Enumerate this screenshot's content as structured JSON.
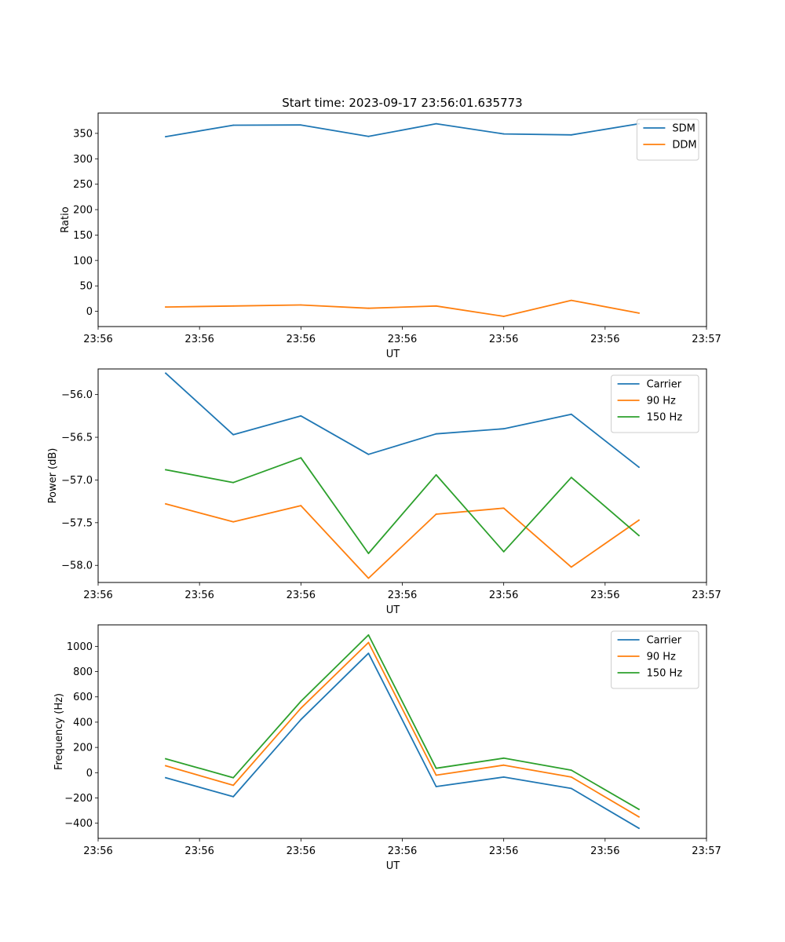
{
  "figure": {
    "title": "Start time: 2023-09-17 23:56:01.635773"
  },
  "chart_data": [
    {
      "type": "line",
      "id": "ratio",
      "title": "Start time: 2023-09-17 23:56:01.635773",
      "xlabel": "UT",
      "ylabel": "Ratio",
      "x_index": [
        1,
        2,
        3,
        4,
        5,
        6,
        7,
        8
      ],
      "xlim": [
        0,
        9
      ],
      "x_tick_positions": [
        0,
        1.5,
        3,
        4.5,
        6,
        7.5,
        9
      ],
      "x_tick_labels": [
        "23:56",
        "23:56",
        "23:56",
        "23:56",
        "23:56",
        "23:56",
        "23:57"
      ],
      "ylim": [
        -30,
        390
      ],
      "y_ticks": [
        0,
        50,
        100,
        150,
        200,
        250,
        300,
        350
      ],
      "y_tick_labels": [
        "0",
        "50",
        "100",
        "150",
        "200",
        "250",
        "300",
        "350"
      ],
      "legend": "upper right",
      "series": [
        {
          "name": "SDM",
          "color": "#1f77b4",
          "values": [
            343.5,
            366,
            366.5,
            344,
            369,
            349,
            347,
            369
          ]
        },
        {
          "name": "DDM",
          "color": "#ff7f0e",
          "values": [
            8.5,
            10.5,
            12.5,
            6,
            10.5,
            -10,
            21.5,
            -3.5
          ]
        }
      ]
    },
    {
      "type": "line",
      "id": "power",
      "title": "",
      "xlabel": "UT",
      "ylabel": "Power (dB)",
      "x_index": [
        1,
        2,
        3,
        4,
        5,
        6,
        7,
        8
      ],
      "xlim": [
        0,
        9
      ],
      "x_tick_positions": [
        0,
        1.5,
        3,
        4.5,
        6,
        7.5,
        9
      ],
      "x_tick_labels": [
        "23:56",
        "23:56",
        "23:56",
        "23:56",
        "23:56",
        "23:56",
        "23:57"
      ],
      "ylim": [
        -58.2,
        -55.7
      ],
      "y_ticks": [
        -58.0,
        -57.5,
        -57.0,
        -56.5,
        -56.0
      ],
      "y_tick_labels": [
        "−58.0",
        "−57.5",
        "−57.0",
        "−56.5",
        "−56.0"
      ],
      "legend": "upper right",
      "series": [
        {
          "name": "Carrier",
          "color": "#1f77b4",
          "values": [
            -55.75,
            -56.47,
            -56.25,
            -56.7,
            -56.46,
            -56.4,
            -56.23,
            -56.85
          ]
        },
        {
          "name": "90 Hz",
          "color": "#ff7f0e",
          "values": [
            -57.28,
            -57.49,
            -57.3,
            -58.15,
            -57.4,
            -57.33,
            -58.02,
            -57.47
          ]
        },
        {
          "name": "150 Hz",
          "color": "#2ca02c",
          "values": [
            -56.88,
            -57.03,
            -56.74,
            -57.86,
            -56.94,
            -57.84,
            -56.97,
            -57.65
          ]
        }
      ]
    },
    {
      "type": "line",
      "id": "frequency",
      "title": "",
      "xlabel": "UT",
      "ylabel": "Frequency (Hz)",
      "x_index": [
        1,
        2,
        3,
        4,
        5,
        6,
        7,
        8
      ],
      "xlim": [
        0,
        9
      ],
      "x_tick_positions": [
        0,
        1.5,
        3,
        4.5,
        6,
        7.5,
        9
      ],
      "x_tick_labels": [
        "23:56",
        "23:56",
        "23:56",
        "23:56",
        "23:56",
        "23:56",
        "23:57"
      ],
      "ylim": [
        -520,
        1170
      ],
      "y_ticks": [
        -400,
        -200,
        0,
        200,
        400,
        600,
        800,
        1000
      ],
      "y_tick_labels": [
        "−400",
        "−200",
        "0",
        "200",
        "400",
        "600",
        "800",
        "1000"
      ],
      "legend": "upper right",
      "series": [
        {
          "name": "Carrier",
          "color": "#1f77b4",
          "values": [
            -40,
            -190,
            420,
            945,
            -110,
            -35,
            -125,
            -440
          ]
        },
        {
          "name": "90 Hz",
          "color": "#ff7f0e",
          "values": [
            55,
            -100,
            510,
            1030,
            -20,
            60,
            -35,
            -350
          ]
        },
        {
          "name": "150 Hz",
          "color": "#2ca02c",
          "values": [
            110,
            -40,
            565,
            1090,
            35,
            115,
            20,
            -290
          ]
        }
      ]
    }
  ]
}
